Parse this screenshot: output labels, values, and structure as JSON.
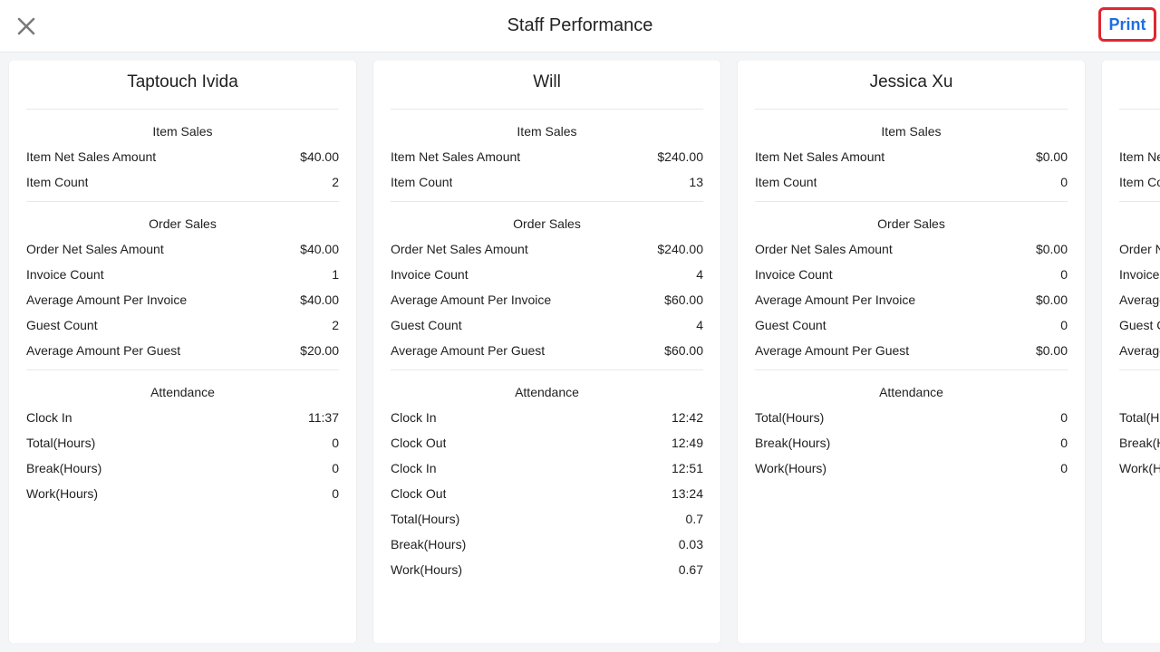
{
  "header": {
    "title": "Staff Performance",
    "print_label": "Print",
    "close_icon": "close-icon"
  },
  "staff": [
    {
      "name": "Taptouch Ivida",
      "item_sales": {
        "title": "Item Sales",
        "rows": [
          {
            "label": "Item Net Sales Amount",
            "value": "$40.00"
          },
          {
            "label": "Item Count",
            "value": "2"
          }
        ]
      },
      "order_sales": {
        "title": "Order Sales",
        "rows": [
          {
            "label": "Order Net Sales Amount",
            "value": "$40.00"
          },
          {
            "label": "Invoice Count",
            "value": "1"
          },
          {
            "label": "Average Amount Per Invoice",
            "value": "$40.00"
          },
          {
            "label": "Guest Count",
            "value": "2"
          },
          {
            "label": "Average Amount Per Guest",
            "value": "$20.00"
          }
        ]
      },
      "attendance": {
        "title": "Attendance",
        "rows": [
          {
            "label": "Clock In",
            "value": "11:37"
          },
          {
            "label": "Total(Hours)",
            "value": "0"
          },
          {
            "label": "Break(Hours)",
            "value": "0"
          },
          {
            "label": "Work(Hours)",
            "value": "0"
          }
        ]
      }
    },
    {
      "name": "Will",
      "item_sales": {
        "title": "Item Sales",
        "rows": [
          {
            "label": "Item Net Sales Amount",
            "value": "$240.00"
          },
          {
            "label": "Item Count",
            "value": "13"
          }
        ]
      },
      "order_sales": {
        "title": "Order Sales",
        "rows": [
          {
            "label": "Order Net Sales Amount",
            "value": "$240.00"
          },
          {
            "label": "Invoice Count",
            "value": "4"
          },
          {
            "label": "Average Amount Per Invoice",
            "value": "$60.00"
          },
          {
            "label": "Guest Count",
            "value": "4"
          },
          {
            "label": "Average Amount Per Guest",
            "value": "$60.00"
          }
        ]
      },
      "attendance": {
        "title": "Attendance",
        "rows": [
          {
            "label": "Clock In",
            "value": "12:42"
          },
          {
            "label": "Clock Out",
            "value": "12:49"
          },
          {
            "label": "Clock In",
            "value": "12:51"
          },
          {
            "label": "Clock Out",
            "value": "13:24"
          },
          {
            "label": "Total(Hours)",
            "value": "0.7"
          },
          {
            "label": "Break(Hours)",
            "value": "0.03"
          },
          {
            "label": "Work(Hours)",
            "value": "0.67"
          }
        ]
      }
    },
    {
      "name": "Jessica Xu",
      "item_sales": {
        "title": "Item Sales",
        "rows": [
          {
            "label": "Item Net Sales Amount",
            "value": "$0.00"
          },
          {
            "label": "Item Count",
            "value": "0"
          }
        ]
      },
      "order_sales": {
        "title": "Order Sales",
        "rows": [
          {
            "label": "Order Net Sales Amount",
            "value": "$0.00"
          },
          {
            "label": "Invoice Count",
            "value": "0"
          },
          {
            "label": "Average Amount Per Invoice",
            "value": "$0.00"
          },
          {
            "label": "Guest Count",
            "value": "0"
          },
          {
            "label": "Average Amount Per Guest",
            "value": "$0.00"
          }
        ]
      },
      "attendance": {
        "title": "Attendance",
        "rows": [
          {
            "label": "Total(Hours)",
            "value": "0"
          },
          {
            "label": "Break(Hours)",
            "value": "0"
          },
          {
            "label": "Work(Hours)",
            "value": "0"
          }
        ]
      }
    },
    {
      "name": "",
      "partial": true,
      "item_sales": {
        "title": "",
        "rows": [
          {
            "label": "Item Ne",
            "value": ""
          },
          {
            "label": "Item Co",
            "value": ""
          }
        ]
      },
      "order_sales": {
        "title": "",
        "rows": [
          {
            "label": "Order N",
            "value": ""
          },
          {
            "label": "Invoice",
            "value": ""
          },
          {
            "label": "Average",
            "value": ""
          },
          {
            "label": "Guest C",
            "value": ""
          },
          {
            "label": "Average",
            "value": ""
          }
        ]
      },
      "attendance": {
        "title": "",
        "rows": [
          {
            "label": "Total(Ho",
            "value": ""
          },
          {
            "label": "Break(H",
            "value": ""
          },
          {
            "label": "Work(H",
            "value": ""
          }
        ]
      }
    }
  ]
}
